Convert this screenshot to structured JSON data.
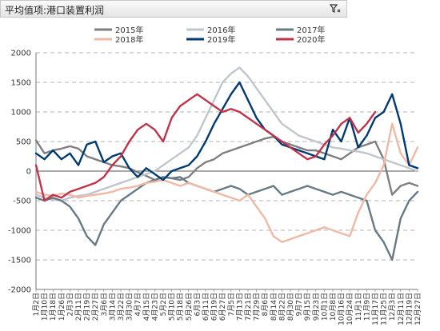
{
  "header": {
    "title": "平均值项:港口装置利润",
    "filter_icon": "filter-icon"
  },
  "chart_data": {
    "type": "line",
    "title": "",
    "xlabel": "",
    "ylabel": "",
    "ylim": [
      -2000,
      2000
    ],
    "yticks": [
      2000,
      1500,
      1000,
      500,
      0,
      -500,
      -1000,
      -1500,
      -2000
    ],
    "grid": true,
    "legend_position": "top",
    "x_ticks": [
      "1月2日",
      "1月10日",
      "1月18日",
      "1月26日",
      "2月3日",
      "2月11日",
      "2月19日",
      "2月27日",
      "3月6日",
      "3月14日",
      "3月22日",
      "3月30日",
      "4月7日",
      "4月15日",
      "4月23日",
      "5月2日",
      "5月10日",
      "5月18日",
      "5月26日",
      "6月3日",
      "6月11日",
      "6月19日",
      "6月27日",
      "7月5日",
      "7月13日",
      "7月21日",
      "7月29日",
      "8月6日",
      "8月14日",
      "8月22日",
      "8月30日",
      "9月7日",
      "9月15日",
      "9月23日",
      "10月1日",
      "10月8日",
      "10月16日",
      "10月24日",
      "11月1日",
      "11月9日",
      "11月17日",
      "11月25日",
      "12月3日",
      "12月11日",
      "12月19日",
      "12月27日"
    ],
    "series": [
      {
        "name": "2015年",
        "color": "#7f7f7f",
        "values": [
          520,
          300,
          350,
          380,
          420,
          380,
          250,
          200,
          150,
          100,
          80,
          50,
          -20,
          -80,
          -150,
          -100,
          -120,
          -150,
          -100,
          50,
          150,
          200,
          300,
          350,
          400,
          450,
          500,
          550,
          580,
          500,
          450,
          400,
          350,
          350,
          300,
          250,
          200,
          300,
          400,
          450,
          500,
          200,
          -400,
          -250,
          -200,
          -250
        ]
      },
      {
        "name": "2016年",
        "color": "#c0c6cc",
        "values": [
          -400,
          -450,
          -480,
          -500,
          -450,
          -420,
          -400,
          -350,
          -300,
          -250,
          -200,
          -150,
          -100,
          -50,
          0,
          100,
          200,
          300,
          400,
          600,
          900,
          1200,
          1500,
          1650,
          1750,
          1600,
          1400,
          1200,
          1000,
          800,
          700,
          600,
          550,
          500,
          450,
          400,
          380,
          350,
          330,
          300,
          250,
          200,
          150,
          100,
          50,
          0
        ]
      },
      {
        "name": "2017年",
        "color": "#687a84",
        "values": [
          -450,
          -500,
          -450,
          -500,
          -600,
          -800,
          -1100,
          -1250,
          -900,
          -700,
          -500,
          -400,
          -300,
          -200,
          -150,
          -100,
          -120,
          -100,
          -200,
          -250,
          -300,
          -350,
          -300,
          -250,
          -300,
          -400,
          -350,
          -300,
          -250,
          -400,
          -350,
          -300,
          -250,
          -300,
          -350,
          -400,
          -350,
          -400,
          -450,
          -500,
          -1000,
          -1200,
          -1500,
          -800,
          -500,
          -350
        ]
      },
      {
        "name": "2018年",
        "color": "#f0b9a6",
        "values": [
          -350,
          -400,
          -420,
          -380,
          -400,
          -450,
          -420,
          -400,
          -380,
          -350,
          -300,
          -280,
          -250,
          -200,
          -180,
          -150,
          -200,
          -250,
          -200,
          -250,
          -300,
          -350,
          -400,
          -450,
          -500,
          -400,
          -600,
          -800,
          -1100,
          -1200,
          -1150,
          -1100,
          -1050,
          -1000,
          -950,
          -1000,
          -1050,
          -1100,
          -700,
          -400,
          -200,
          100,
          800,
          300,
          100,
          400
        ]
      },
      {
        "name": "2019年",
        "color": "#003a70",
        "values": [
          300,
          200,
          350,
          200,
          300,
          100,
          450,
          500,
          150,
          250,
          300,
          50,
          -100,
          50,
          -50,
          -150,
          0,
          50,
          100,
          250,
          500,
          800,
          1050,
          1300,
          1500,
          1200,
          900,
          700,
          600,
          450,
          400,
          350,
          300,
          250,
          200,
          700,
          500,
          900,
          400,
          600,
          900,
          1000,
          1300,
          800,
          100,
          50
        ]
      },
      {
        "name": "2020年",
        "color": "#c0334a",
        "values": [
          100,
          -500,
          -400,
          -450,
          -350,
          -300,
          -250,
          -200,
          -100,
          100,
          250,
          500,
          700,
          800,
          700,
          500,
          900,
          1100,
          1200,
          1300,
          1200,
          1100,
          1000,
          1050,
          1000,
          900,
          800,
          700,
          600,
          500,
          400,
          300,
          200,
          250,
          450,
          600,
          800,
          900,
          650,
          800,
          1000,
          null,
          null,
          null,
          null,
          null
        ]
      }
    ]
  }
}
